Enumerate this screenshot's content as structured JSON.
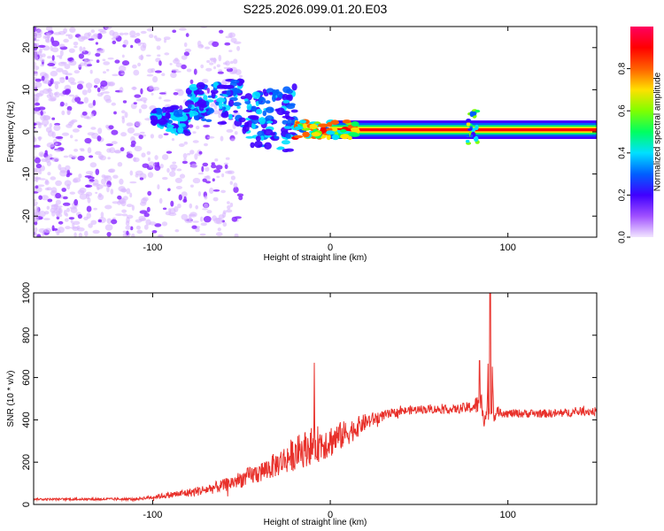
{
  "figure_title": "S225.2026.099.01.20.E03",
  "chart_data": [
    {
      "type": "heatmap",
      "title": "S225.2026.099.01.20.E03",
      "xlabel": "Height of straight line (km)",
      "ylabel": "Frequency (Hz)",
      "xlim": [
        -167,
        150
      ],
      "ylim": [
        -25,
        25
      ],
      "x_ticks": [
        -100,
        0,
        100
      ],
      "y_ticks": [
        -20,
        -10,
        0,
        10,
        20
      ],
      "colorbar": {
        "label": "Normalized spectral amplitude",
        "range": [
          0.0,
          1.0
        ],
        "ticks": [
          0.0,
          0.2,
          0.4,
          0.6,
          0.8
        ],
        "tick_labels": [
          "0.0",
          "0.2",
          "0.4",
          "0.6",
          "0.8"
        ],
        "colormap": [
          "#f2e6ff",
          "#a050ff",
          "#4000ff",
          "#0060ff",
          "#00e0ff",
          "#00ff60",
          "#80ff00",
          "#ffe000",
          "#ff6000",
          "#ff0000",
          "#ff0060"
        ]
      },
      "features": [
        {
          "name": "scattered noise",
          "x_range": [
            -167,
            -50
          ],
          "freq_range": [
            -25,
            25
          ],
          "amplitude": 0.05
        },
        {
          "name": "weak emerging signal",
          "x_range": [
            -100,
            -20
          ],
          "freq_center": 3,
          "amplitude": 0.25
        },
        {
          "name": "signal band",
          "x_range": [
            0,
            150
          ],
          "freq_center": 0.5,
          "amplitude": 0.95
        },
        {
          "name": "feature at ~80 km",
          "x": 80,
          "freq_range": [
            -3,
            5
          ],
          "amplitude": 0.6
        }
      ]
    },
    {
      "type": "line",
      "xlabel": "Height of straight line (km)",
      "ylabel": "SNR (10 * v/v)",
      "xlim": [
        -167,
        150
      ],
      "ylim": [
        0,
        1000
      ],
      "x_ticks": [
        -100,
        0,
        100
      ],
      "y_ticks": [
        0,
        200,
        400,
        600,
        800,
        1000
      ],
      "series": [
        {
          "name": "SNR",
          "color": "#e8302a",
          "x": [
            -167,
            -150,
            -130,
            -110,
            -100,
            -90,
            -80,
            -70,
            -60,
            -50,
            -40,
            -30,
            -20,
            -10,
            0,
            10,
            20,
            30,
            40,
            50,
            60,
            70,
            80,
            85,
            88,
            90,
            92,
            95,
            100,
            110,
            120,
            130,
            140,
            150
          ],
          "y": [
            25,
            25,
            25,
            25,
            35,
            45,
            55,
            70,
            90,
            120,
            150,
            190,
            240,
            280,
            300,
            340,
            390,
            420,
            440,
            450,
            450,
            450,
            460,
            480,
            400,
            1000,
            420,
            440,
            430,
            430,
            430,
            430,
            440,
            440
          ],
          "noise_amplitude": [
            5,
            5,
            6,
            6,
            10,
            15,
            20,
            25,
            30,
            40,
            50,
            60,
            80,
            90,
            80,
            60,
            40,
            25,
            20,
            20,
            20,
            20,
            30,
            60,
            80,
            0,
            30,
            25,
            20,
            20,
            20,
            20,
            20,
            20
          ]
        }
      ],
      "spikes": [
        {
          "x": -9,
          "y": 670
        },
        {
          "x": 84,
          "y": 680
        },
        {
          "x": 90,
          "y": 1000
        }
      ]
    }
  ]
}
